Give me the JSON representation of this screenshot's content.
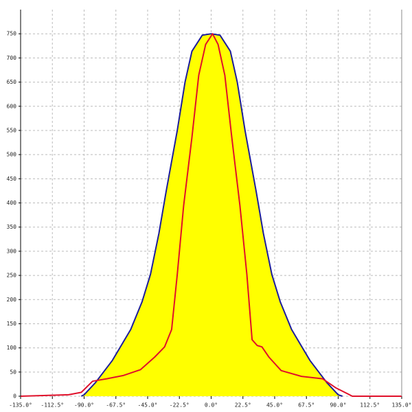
{
  "chart_data": {
    "type": "area-line",
    "xlim": [
      -135,
      135
    ],
    "ylim": [
      0,
      800
    ],
    "xticks": [
      {
        "value": -135,
        "label": "-135.0°"
      },
      {
        "value": -112.5,
        "label": "-112.5°"
      },
      {
        "value": -90,
        "label": "-90.0°"
      },
      {
        "value": -67.5,
        "label": "-67.5°"
      },
      {
        "value": -45,
        "label": "-45.0°"
      },
      {
        "value": -22.5,
        "label": "-22.5°"
      },
      {
        "value": 0,
        "label": "0.0°"
      },
      {
        "value": 22.5,
        "label": "22.5°"
      },
      {
        "value": 45,
        "label": "45.0°"
      },
      {
        "value": 67.5,
        "label": "67.5°"
      },
      {
        "value": 90,
        "label": "90.0°"
      },
      {
        "value": 112.5,
        "label": "112.5°"
      },
      {
        "value": 135,
        "label": "135.0°"
      }
    ],
    "yticks": [
      0,
      50,
      100,
      150,
      200,
      250,
      300,
      350,
      400,
      450,
      500,
      550,
      600,
      650,
      700,
      750
    ],
    "grid": true,
    "series": [
      {
        "color": "#1c1c9c",
        "fill": "#ffff00",
        "x": [
          -92,
          -90,
          -82,
          -70,
          -57,
          -49,
          -43,
          -37,
          -32,
          -24,
          -18.5,
          -13.6,
          -6.3,
          0,
          6.3,
          13.6,
          18.5,
          24,
          32,
          37,
          43,
          49,
          57,
          70,
          82,
          90,
          93
        ],
        "values": [
          0,
          3,
          28,
          74,
          138,
          195,
          252,
          337,
          422,
          550,
          650,
          714,
          747,
          750,
          747,
          714,
          650,
          550,
          422,
          337,
          252,
          195,
          138,
          74,
          28,
          3,
          0
        ]
      },
      {
        "color": "#e0102a",
        "x": [
          -135,
          -101,
          -92,
          -84,
          -74,
          -62,
          -50,
          -40,
          -33,
          -28,
          -24,
          -19.5,
          -13.6,
          -8.8,
          -3.9,
          1,
          4.9,
          9.7,
          14.6,
          20.4,
          25.3,
          29,
          32.6,
          36,
          40.9,
          49.6,
          64,
          79,
          88.5,
          98,
          100,
          135
        ],
        "values": [
          0,
          3,
          8,
          31,
          36,
          43,
          55,
          81,
          102,
          138,
          252,
          394,
          536,
          664,
          728,
          750,
          728,
          664,
          536,
          394,
          252,
          117,
          105,
          102,
          81,
          53,
          41,
          36,
          17,
          3,
          0,
          0
        ]
      }
    ]
  }
}
